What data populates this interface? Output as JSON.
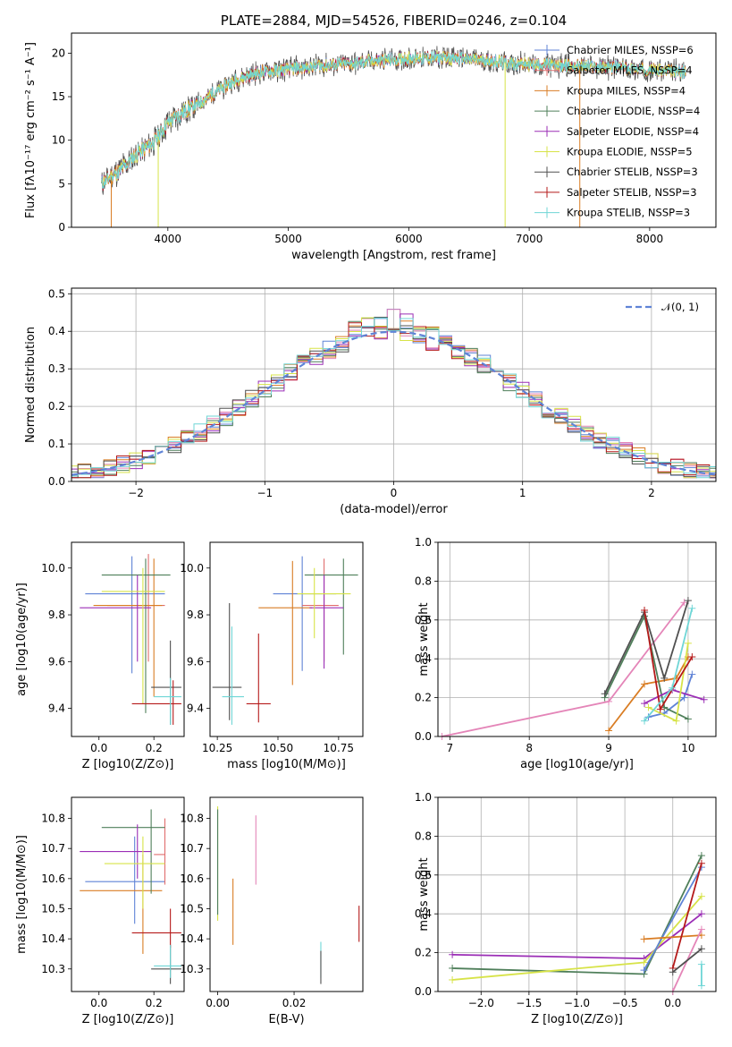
{
  "colors": {
    "Chabrier MILES": "#5f83d6",
    "Salpeter MILES": "#e06d6d",
    "Kroupa MILES": "#d97d24",
    "Chabrier ELODIE": "#4f7f5a",
    "Salpeter ELODIE": "#9b2eb6",
    "Kroupa ELODIE": "#d7e348",
    "Chabrier STELIB": "#505050",
    "Salpeter STELIB": "#b51a1a",
    "Kroupa STELIB": "#6fd6d6",
    "pink": "#e485b8",
    "normal": "#5f83d6"
  },
  "chart_data": [
    {
      "id": "spectrum",
      "type": "line",
      "title": "PLATE=2884, MJD=54526, FIBERID=0246, z=0.104",
      "xlabel": "wavelength [Angstrom, rest frame]",
      "ylabel": "Flux [fλ10⁻¹⁷ erg cm⁻² s⁻¹ A⁻¹]",
      "xlim": [
        3200,
        8550
      ],
      "ylim": [
        0,
        22.3
      ],
      "xticks": [
        4000,
        5000,
        6000,
        7000,
        8000
      ],
      "yticks": [
        0,
        5,
        10,
        15,
        20
      ],
      "grid": false,
      "legend_position": "top-right",
      "continuum": [
        [
          3450,
          5.0
        ],
        [
          3600,
          6.5
        ],
        [
          3750,
          8.5
        ],
        [
          3900,
          10.0
        ],
        [
          4000,
          12.0
        ],
        [
          4100,
          13.0
        ],
        [
          4200,
          13.8
        ],
        [
          4300,
          14.6
        ],
        [
          4400,
          15.6
        ],
        [
          4500,
          16.4
        ],
        [
          4600,
          17.1
        ],
        [
          4700,
          17.6
        ],
        [
          4800,
          17.9
        ],
        [
          4900,
          18.0
        ],
        [
          5000,
          18.2
        ],
        [
          5100,
          18.3
        ],
        [
          5200,
          18.5
        ],
        [
          5300,
          18.6
        ],
        [
          5400,
          18.7
        ],
        [
          5500,
          18.8
        ],
        [
          5600,
          18.9
        ],
        [
          5700,
          19.1
        ],
        [
          5800,
          19.2
        ],
        [
          5900,
          19.3
        ],
        [
          6000,
          19.4
        ],
        [
          6200,
          19.5
        ],
        [
          6400,
          19.4
        ],
        [
          6600,
          19.2
        ],
        [
          6800,
          18.9
        ],
        [
          7000,
          18.7
        ],
        [
          7200,
          18.6
        ],
        [
          7400,
          18.5
        ],
        [
          7600,
          18.4
        ],
        [
          7800,
          18.3
        ],
        [
          8000,
          18.1
        ],
        [
          8300,
          17.8
        ]
      ],
      "series": [
        {
          "name": "Chabrier MILES, NSSP=6",
          "key": "Chabrier MILES"
        },
        {
          "name": "Salpeter MILES, NSSP=4",
          "key": "Salpeter MILES"
        },
        {
          "name": "Kroupa MILES, NSSP=4",
          "key": "Kroupa MILES"
        },
        {
          "name": "Chabrier ELODIE, NSSP=4",
          "key": "Chabrier ELODIE"
        },
        {
          "name": "Salpeter ELODIE, NSSP=4",
          "key": "Salpeter ELODIE"
        },
        {
          "name": "Kroupa ELODIE, NSSP=5",
          "key": "Kroupa ELODIE"
        },
        {
          "name": "Chabrier STELIB, NSSP=3",
          "key": "Chabrier STELIB"
        },
        {
          "name": "Salpeter STELIB, NSSP=3",
          "key": "Salpeter STELIB"
        },
        {
          "name": "Kroupa STELIB, NSSP=3",
          "key": "Kroupa STELIB"
        }
      ],
      "drops": [
        {
          "key": "Kroupa MILES",
          "x": 3530
        },
        {
          "key": "Kroupa ELODIE",
          "x": 3920
        },
        {
          "key": "Kroupa ELODIE",
          "x": 6800
        },
        {
          "key": "Kroupa MILES",
          "x": 7420
        }
      ]
    },
    {
      "id": "residuals",
      "type": "histogram",
      "xlabel": "(data-model)/error",
      "ylabel": "Normed distribution",
      "xlim": [
        -2.5,
        2.5
      ],
      "ylim": [
        0,
        0.515
      ],
      "xticks": [
        -2,
        -1,
        0,
        1,
        2
      ],
      "yticks": [
        0.0,
        0.1,
        0.2,
        0.3,
        0.4,
        0.5
      ],
      "grid": true,
      "legend_position": "top-right",
      "normal_label": "𝒩(0, 1)"
    },
    {
      "id": "age-vs-Z",
      "type": "errorbar",
      "xlabel": "Z [log10(Z/Z⊙)]",
      "ylabel": "age  [log10(age/yr)]",
      "xlim": [
        -0.1,
        0.31
      ],
      "ylim": [
        9.28,
        10.11
      ],
      "xticks": [
        0.0,
        0.2
      ],
      "yticks": [
        9.4,
        9.6,
        9.8,
        10.0
      ],
      "points": [
        {
          "c": "Chabrier MILES",
          "x": 0.12,
          "y": 9.89,
          "xe": [
            -0.05,
            0.24
          ],
          "ye": [
            9.55,
            10.05
          ]
        },
        {
          "c": "Salpeter MILES",
          "x": 0.18,
          "y": 9.84,
          "xe": [
            0.03,
            0.24
          ],
          "ye": [
            9.6,
            10.06
          ]
        },
        {
          "c": "Kroupa MILES",
          "x": 0.2,
          "y": 9.84,
          "xe": [
            -0.02,
            0.23
          ],
          "ye": [
            9.45,
            10.04
          ]
        },
        {
          "c": "Chabrier ELODIE",
          "x": 0.17,
          "y": 9.97,
          "xe": [
            0.01,
            0.26
          ],
          "ye": [
            9.38,
            10.04
          ]
        },
        {
          "c": "Salpeter ELODIE",
          "x": 0.14,
          "y": 9.83,
          "xe": [
            -0.07,
            0.19
          ],
          "ye": [
            9.6,
            9.97
          ]
        },
        {
          "c": "Kroupa ELODIE",
          "x": 0.16,
          "y": 9.9,
          "xe": [
            0.01,
            0.24
          ],
          "ye": [
            9.42,
            10.0
          ]
        },
        {
          "c": "Chabrier STELIB",
          "x": 0.26,
          "y": 9.49,
          "xe": [
            0.19,
            0.3
          ],
          "ye": [
            9.33,
            9.69
          ]
        },
        {
          "c": "Salpeter STELIB",
          "x": 0.27,
          "y": 9.42,
          "xe": [
            0.12,
            0.3
          ],
          "ye": [
            9.33,
            9.52
          ]
        },
        {
          "c": "Kroupa STELIB",
          "x": 0.26,
          "y": 9.45,
          "xe": [
            0.2,
            0.3
          ],
          "ye": [
            9.33,
            9.53
          ]
        }
      ]
    },
    {
      "id": "age-vs-mass",
      "type": "errorbar",
      "xlabel": "mass [log10(M/M⊙)]",
      "xlim": [
        10.22,
        10.85
      ],
      "ylim": [
        9.28,
        10.11
      ],
      "xticks": [
        10.25,
        10.5,
        10.75
      ],
      "yticks": [
        9.4,
        9.6,
        9.8,
        10.0
      ],
      "points": [
        {
          "c": "Chabrier MILES",
          "x": 10.6,
          "y": 9.89,
          "xe": [
            10.48,
            10.74
          ],
          "ye": [
            9.56,
            10.05
          ]
        },
        {
          "c": "Salpeter MILES",
          "x": 10.69,
          "y": 9.84,
          "xe": [
            10.6,
            10.75
          ],
          "ye": [
            9.6,
            10.04
          ]
        },
        {
          "c": "Kroupa MILES",
          "x": 10.56,
          "y": 9.83,
          "xe": [
            10.42,
            10.64
          ],
          "ye": [
            9.5,
            10.03
          ]
        },
        {
          "c": "Chabrier ELODIE",
          "x": 10.77,
          "y": 9.97,
          "xe": [
            10.61,
            10.83
          ],
          "ye": [
            9.63,
            10.04
          ]
        },
        {
          "c": "Salpeter ELODIE",
          "x": 10.69,
          "y": 9.83,
          "xe": [
            10.63,
            10.77
          ],
          "ye": [
            9.57,
            9.97
          ]
        },
        {
          "c": "Kroupa ELODIE",
          "x": 10.65,
          "y": 9.89,
          "xe": [
            10.58,
            10.8
          ],
          "ye": [
            9.7,
            10.0
          ]
        },
        {
          "c": "Chabrier STELIB",
          "x": 10.3,
          "y": 9.49,
          "xe": [
            10.23,
            10.35
          ],
          "ye": [
            9.35,
            9.85
          ]
        },
        {
          "c": "Salpeter STELIB",
          "x": 10.42,
          "y": 9.42,
          "xe": [
            10.37,
            10.47
          ],
          "ye": [
            9.34,
            9.72
          ]
        },
        {
          "c": "Kroupa STELIB",
          "x": 10.31,
          "y": 9.45,
          "xe": [
            10.27,
            10.36
          ],
          "ye": [
            9.33,
            9.75
          ]
        }
      ]
    },
    {
      "id": "weight-vs-age",
      "type": "line",
      "xlabel": "age  [log10(age/yr)]",
      "ylabel": "mass weight",
      "xlim": [
        6.85,
        10.35
      ],
      "ylim": [
        0,
        1
      ],
      "xticks": [
        7,
        8,
        9,
        10
      ],
      "yticks": [
        0.0,
        0.2,
        0.4,
        0.6,
        0.8,
        1.0
      ],
      "grid": true,
      "series": [
        {
          "c": "pink",
          "pts": [
            [
              6.9,
              0.0
            ],
            [
              9.0,
              0.18
            ],
            [
              9.95,
              0.69
            ]
          ]
        },
        {
          "c": "Chabrier MILES",
          "pts": [
            [
              9.5,
              0.1
            ],
            [
              9.7,
              0.12
            ],
            [
              9.95,
              0.2
            ],
            [
              10.05,
              0.32
            ]
          ]
        },
        {
          "c": "Kroupa MILES",
          "pts": [
            [
              9.0,
              0.03
            ],
            [
              9.45,
              0.27
            ],
            [
              9.85,
              0.3
            ],
            [
              10.0,
              0.41
            ]
          ]
        },
        {
          "c": "Chabrier ELODIE",
          "pts": [
            [
              8.95,
              0.2
            ],
            [
              9.45,
              0.62
            ],
            [
              9.7,
              0.15
            ],
            [
              10.0,
              0.09
            ]
          ]
        },
        {
          "c": "Salpeter ELODIE",
          "pts": [
            [
              9.45,
              0.17
            ],
            [
              9.8,
              0.24
            ],
            [
              10.2,
              0.19
            ]
          ]
        },
        {
          "c": "Kroupa ELODIE",
          "pts": [
            [
              9.5,
              0.15
            ],
            [
              9.85,
              0.08
            ],
            [
              10.0,
              0.48
            ]
          ]
        },
        {
          "c": "Chabrier STELIB",
          "pts": [
            [
              8.95,
              0.22
            ],
            [
              9.45,
              0.64
            ],
            [
              9.7,
              0.3
            ],
            [
              10.0,
              0.7
            ]
          ]
        },
        {
          "c": "Salpeter STELIB",
          "pts": [
            [
              9.45,
              0.65
            ],
            [
              9.65,
              0.14
            ],
            [
              10.05,
              0.41
            ]
          ]
        },
        {
          "c": "Kroupa STELIB",
          "pts": [
            [
              9.45,
              0.08
            ],
            [
              9.8,
              0.25
            ],
            [
              10.05,
              0.66
            ]
          ]
        }
      ]
    },
    {
      "id": "mass-vs-Z",
      "type": "errorbar",
      "xlabel": "Z [log10(Z/Z⊙)]",
      "ylabel": "mass [log10(M/M⊙)]",
      "xlim": [
        -0.1,
        0.31
      ],
      "ylim": [
        10.225,
        10.87
      ],
      "xticks": [
        0.0,
        0.2
      ],
      "yticks": [
        10.3,
        10.4,
        10.5,
        10.6,
        10.7,
        10.8
      ],
      "points": [
        {
          "c": "Chabrier MILES",
          "x": 0.13,
          "y": 10.59,
          "xe": [
            -0.05,
            0.24
          ],
          "ye": [
            10.45,
            10.74
          ]
        },
        {
          "c": "Salpeter MILES",
          "x": 0.24,
          "y": 10.68,
          "xe": [
            0.2,
            0.24
          ],
          "ye": [
            10.58,
            10.8
          ]
        },
        {
          "c": "Kroupa MILES",
          "x": 0.16,
          "y": 10.56,
          "xe": [
            -0.07,
            0.23
          ],
          "ye": [
            10.35,
            10.68
          ]
        },
        {
          "c": "Chabrier ELODIE",
          "x": 0.19,
          "y": 10.77,
          "xe": [
            0.01,
            0.24
          ],
          "ye": [
            10.55,
            10.83
          ]
        },
        {
          "c": "Salpeter ELODIE",
          "x": 0.14,
          "y": 10.69,
          "xe": [
            -0.07,
            0.19
          ],
          "ye": [
            10.6,
            10.78
          ]
        },
        {
          "c": "Kroupa ELODIE",
          "x": 0.16,
          "y": 10.65,
          "xe": [
            0.02,
            0.24
          ],
          "ye": [
            10.5,
            10.74
          ]
        },
        {
          "c": "Chabrier STELIB",
          "x": 0.26,
          "y": 10.3,
          "xe": [
            0.19,
            0.3
          ],
          "ye": [
            10.25,
            10.38
          ]
        },
        {
          "c": "Salpeter STELIB",
          "x": 0.26,
          "y": 10.42,
          "xe": [
            0.12,
            0.3
          ],
          "ye": [
            10.37,
            10.5
          ]
        },
        {
          "c": "Kroupa STELIB",
          "x": 0.26,
          "y": 10.31,
          "xe": [
            0.2,
            0.3
          ],
          "ye": [
            10.27,
            10.38
          ]
        }
      ]
    },
    {
      "id": "mass-vs-ebv",
      "type": "errorbar",
      "xlabel": "E(B-V)",
      "xlim": [
        -0.002,
        0.038
      ],
      "ylim": [
        10.225,
        10.87
      ],
      "xticks": [
        0.0,
        0.02
      ],
      "yticks": [
        10.3,
        10.4,
        10.5,
        10.6,
        10.7,
        10.8
      ],
      "points": [
        {
          "c": "Kroupa ELODIE",
          "x": 0.0,
          "y": 10.65,
          "xe": [
            0.0,
            0.0
          ],
          "ye": [
            10.46,
            10.84
          ]
        },
        {
          "c": "Chabrier ELODIE",
          "x": 0.0,
          "y": 10.66,
          "xe": [
            0.0,
            0.0
          ],
          "ye": [
            10.48,
            10.83
          ]
        },
        {
          "c": "Kroupa MILES",
          "x": 0.004,
          "y": 10.49,
          "xe": [
            0.004,
            0.004
          ],
          "ye": [
            10.38,
            10.6
          ]
        },
        {
          "c": "pink",
          "x": 0.01,
          "y": 10.69,
          "xe": [
            0.01,
            0.01
          ],
          "ye": [
            10.58,
            10.81
          ]
        },
        {
          "c": "Kroupa STELIB",
          "x": 0.027,
          "y": 10.33,
          "xe": [
            0.027,
            0.027
          ],
          "ye": [
            10.27,
            10.39
          ]
        },
        {
          "c": "Chabrier STELIB",
          "x": 0.027,
          "y": 10.3,
          "xe": [
            0.027,
            0.027
          ],
          "ye": [
            10.25,
            10.36
          ]
        },
        {
          "c": "Salpeter STELIB",
          "x": 0.037,
          "y": 10.45,
          "xe": [
            0.037,
            0.037
          ],
          "ye": [
            10.39,
            10.51
          ]
        }
      ]
    },
    {
      "id": "weight-vs-Z",
      "type": "line",
      "xlabel": "Z [log10(Z/Z⊙)]",
      "ylabel": "mass weight",
      "xlim": [
        -2.45,
        0.45
      ],
      "ylim": [
        0,
        1
      ],
      "xticks": [
        -2.0,
        -1.5,
        -1.0,
        -0.5,
        0.0
      ],
      "yticks": [
        0.0,
        0.2,
        0.4,
        0.6,
        0.8,
        1.0
      ],
      "grid": true,
      "series": [
        {
          "c": "Salpeter ELODIE",
          "pts": [
            [
              -2.3,
              0.19
            ],
            [
              -0.3,
              0.17
            ],
            [
              0.3,
              0.4
            ]
          ]
        },
        {
          "c": "Chabrier ELODIE",
          "pts": [
            [
              -2.3,
              0.12
            ],
            [
              -0.3,
              0.09
            ],
            [
              0.3,
              0.7
            ]
          ]
        },
        {
          "c": "Kroupa ELODIE",
          "pts": [
            [
              -2.3,
              0.06
            ],
            [
              -0.3,
              0.15
            ],
            [
              0.3,
              0.49
            ]
          ]
        },
        {
          "c": "Chabrier MILES",
          "pts": [
            [
              -0.3,
              0.11
            ],
            [
              0.3,
              0.64
            ]
          ]
        },
        {
          "c": "Kroupa MILES",
          "pts": [
            [
              -0.3,
              0.27
            ],
            [
              0.3,
              0.29
            ]
          ]
        },
        {
          "c": "pink",
          "pts": [
            [
              0.0,
              0.0
            ],
            [
              0.3,
              0.32
            ]
          ]
        },
        {
          "c": "Salpeter STELIB",
          "pts": [
            [
              0.0,
              0.12
            ],
            [
              0.3,
              0.66
            ]
          ]
        },
        {
          "c": "Chabrier STELIB",
          "pts": [
            [
              0.0,
              0.1
            ],
            [
              0.3,
              0.22
            ]
          ]
        },
        {
          "c": "Kroupa STELIB",
          "pts": [
            [
              0.3,
              0.03
            ],
            [
              0.3,
              0.14
            ]
          ]
        }
      ]
    }
  ]
}
